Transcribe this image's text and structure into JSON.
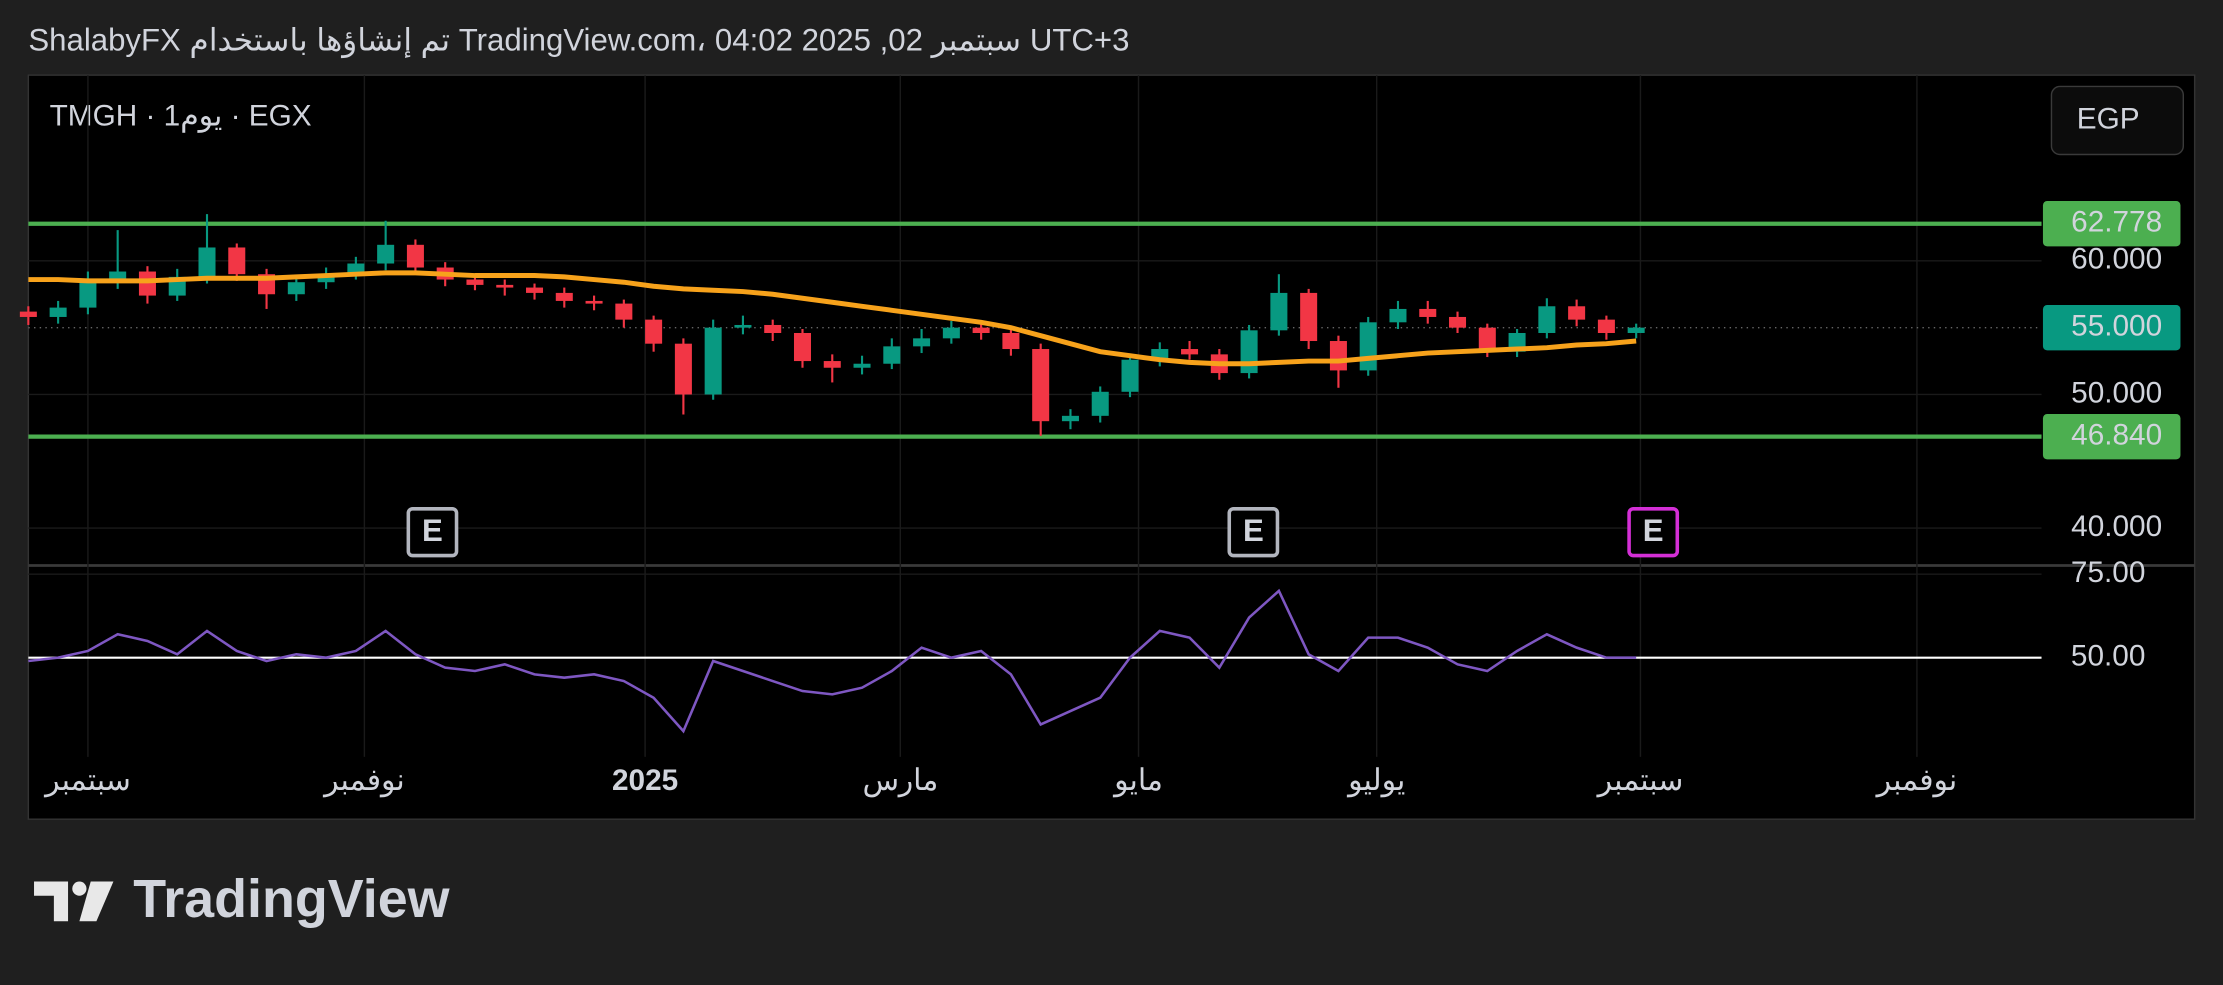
{
  "header": "ShalabyFX تم إنشاؤها باستخدام TradingView.com، 04:02 2025 ,02 سبتمبر UTC+3",
  "footer": "TradingView",
  "chart_data": {
    "type": "candlestick",
    "title": "TMGH · 1يوم · EGX",
    "currency": "EGP",
    "xlim": [
      -14,
      459.3
    ],
    "xticks": [
      {
        "value": 0,
        "label": "سبتمبر"
      },
      {
        "value": 65,
        "label": "نوفمبر"
      },
      {
        "value": 131,
        "label": "2025"
      },
      {
        "value": 191,
        "label": "مارس"
      },
      {
        "value": 247,
        "label": "مايو"
      },
      {
        "value": 303,
        "label": "يوليو"
      },
      {
        "value": 365,
        "label": "سبتمبر"
      },
      {
        "value": 430,
        "label": "نوفمبر"
      }
    ],
    "ylim": [
      37.2,
      73.9
    ],
    "yticks": [
      {
        "value": 40,
        "label": "40.000"
      },
      {
        "value": 50,
        "label": "50.000"
      },
      {
        "value": 60,
        "label": "60.000"
      }
    ],
    "grid": true,
    "up_color": "#089981",
    "down_color": "#f23645",
    "candles": {
      "x": [
        -14,
        -7,
        0,
        7,
        14,
        21,
        28,
        35,
        42,
        49,
        56,
        63,
        70,
        77,
        84,
        91,
        98,
        105,
        112,
        119,
        126,
        133,
        140,
        147,
        154,
        161,
        168,
        175,
        182,
        189,
        196,
        203,
        210,
        217,
        224,
        231,
        238,
        245,
        252,
        259,
        266,
        273,
        280,
        287,
        294,
        301,
        308,
        315,
        322,
        329,
        336,
        343,
        350,
        357,
        364
      ],
      "open": [
        56.2,
        55.8,
        56.5,
        58.5,
        59.2,
        57.4,
        58.8,
        61.0,
        59.0,
        57.5,
        58.4,
        59.0,
        59.8,
        61.2,
        59.5,
        58.6,
        58.2,
        58.0,
        57.6,
        57.0,
        56.8,
        55.6,
        53.8,
        50.0,
        55.0,
        55.2,
        54.6,
        52.5,
        52.0,
        52.3,
        53.6,
        54.2,
        55.0,
        54.6,
        53.4,
        48.0,
        48.4,
        50.2,
        52.6,
        53.4,
        53.0,
        51.6,
        54.8,
        57.6,
        54.0,
        51.8,
        55.4,
        56.4,
        55.8,
        55.0,
        53.2,
        54.6,
        56.6,
        55.6,
        54.6
      ],
      "high": [
        56.6,
        57.0,
        59.2,
        62.3,
        59.6,
        59.4,
        63.5,
        61.3,
        59.4,
        58.9,
        59.5,
        60.3,
        63.0,
        61.6,
        59.9,
        59.0,
        58.6,
        58.3,
        58.0,
        57.4,
        57.1,
        55.9,
        54.2,
        55.6,
        55.9,
        55.6,
        54.9,
        53.0,
        52.9,
        54.2,
        54.9,
        55.5,
        55.4,
        54.9,
        53.8,
        48.9,
        50.6,
        52.9,
        53.9,
        54.0,
        53.4,
        55.2,
        59.0,
        57.9,
        54.4,
        55.8,
        57.0,
        57.0,
        56.2,
        55.3,
        54.9,
        57.2,
        57.1,
        55.9,
        55.3
      ],
      "low": [
        55.2,
        55.3,
        56.0,
        57.9,
        56.8,
        57.0,
        58.3,
        58.5,
        56.4,
        57.0,
        57.9,
        58.6,
        59.3,
        59.0,
        58.1,
        57.8,
        57.4,
        57.1,
        56.5,
        56.3,
        55.0,
        53.2,
        48.5,
        49.6,
        54.5,
        54.0,
        52.0,
        50.9,
        51.5,
        51.9,
        53.1,
        53.8,
        54.1,
        52.9,
        46.9,
        47.4,
        47.9,
        49.8,
        52.1,
        52.6,
        51.1,
        51.2,
        54.4,
        53.4,
        50.5,
        51.4,
        54.9,
        55.3,
        54.6,
        52.8,
        52.8,
        54.2,
        55.1,
        54.1,
        54.2
      ],
      "close": [
        55.8,
        56.5,
        58.5,
        59.2,
        57.4,
        58.8,
        61.0,
        59.0,
        57.5,
        58.4,
        59.0,
        59.8,
        61.2,
        59.5,
        58.6,
        58.2,
        58.0,
        57.6,
        57.0,
        56.8,
        55.6,
        53.8,
        50.0,
        55.0,
        55.2,
        54.6,
        52.5,
        52.0,
        52.3,
        53.6,
        54.2,
        55.0,
        54.6,
        53.4,
        48.0,
        48.4,
        50.2,
        52.6,
        53.4,
        53.0,
        51.6,
        54.8,
        57.6,
        54.0,
        51.8,
        55.4,
        56.4,
        55.8,
        55.0,
        53.2,
        54.6,
        56.6,
        55.6,
        54.6,
        55.0
      ]
    },
    "ma": {
      "color": "#f7a21b",
      "values": [
        58.6,
        58.6,
        58.5,
        58.5,
        58.5,
        58.6,
        58.7,
        58.7,
        58.7,
        58.8,
        58.9,
        59.0,
        59.1,
        59.1,
        59.0,
        58.9,
        58.9,
        58.9,
        58.8,
        58.6,
        58.4,
        58.1,
        57.9,
        57.8,
        57.7,
        57.5,
        57.2,
        56.9,
        56.6,
        56.3,
        56.0,
        55.7,
        55.4,
        55.0,
        54.4,
        53.8,
        53.2,
        52.9,
        52.6,
        52.4,
        52.3,
        52.3,
        52.4,
        52.5,
        52.5,
        52.7,
        52.9,
        53.1,
        53.2,
        53.3,
        53.4,
        53.5,
        53.7,
        53.8,
        54.0
      ]
    },
    "levels": {
      "color": "#4caf50",
      "values": [
        62.778,
        {
          "value": 46.84,
          "label": "46.840"
        }
      ]
    },
    "last_price": {
      "value": 55,
      "label": "55.000",
      "color": "#089981"
    },
    "events": [
      {
        "x": 81,
        "label": "E",
        "color": "#b2b5be"
      },
      {
        "x": 274,
        "label": "E",
        "color": "#b2b5be"
      },
      {
        "x": 368,
        "label": "E",
        "color": "#d42fd6"
      }
    ],
    "rsi": {
      "color": "#7e57c2",
      "ylim": [
        22,
        77.6
      ],
      "yticks": [
        {
          "value": 50,
          "label": "50.00"
        },
        {
          "value": 75,
          "label": "75.00"
        }
      ],
      "values": [
        49,
        50,
        52,
        57,
        55,
        51,
        58,
        52,
        49,
        51,
        50,
        52,
        58,
        51,
        47,
        46,
        48,
        45,
        44,
        45,
        43,
        38,
        28,
        49,
        46,
        43,
        40,
        39,
        41,
        46,
        53,
        50,
        52,
        45,
        30,
        34,
        38,
        50,
        58,
        56,
        47,
        62,
        70,
        51,
        46,
        56,
        56,
        53,
        48,
        46,
        52,
        57,
        53,
        50,
        50
      ]
    }
  }
}
